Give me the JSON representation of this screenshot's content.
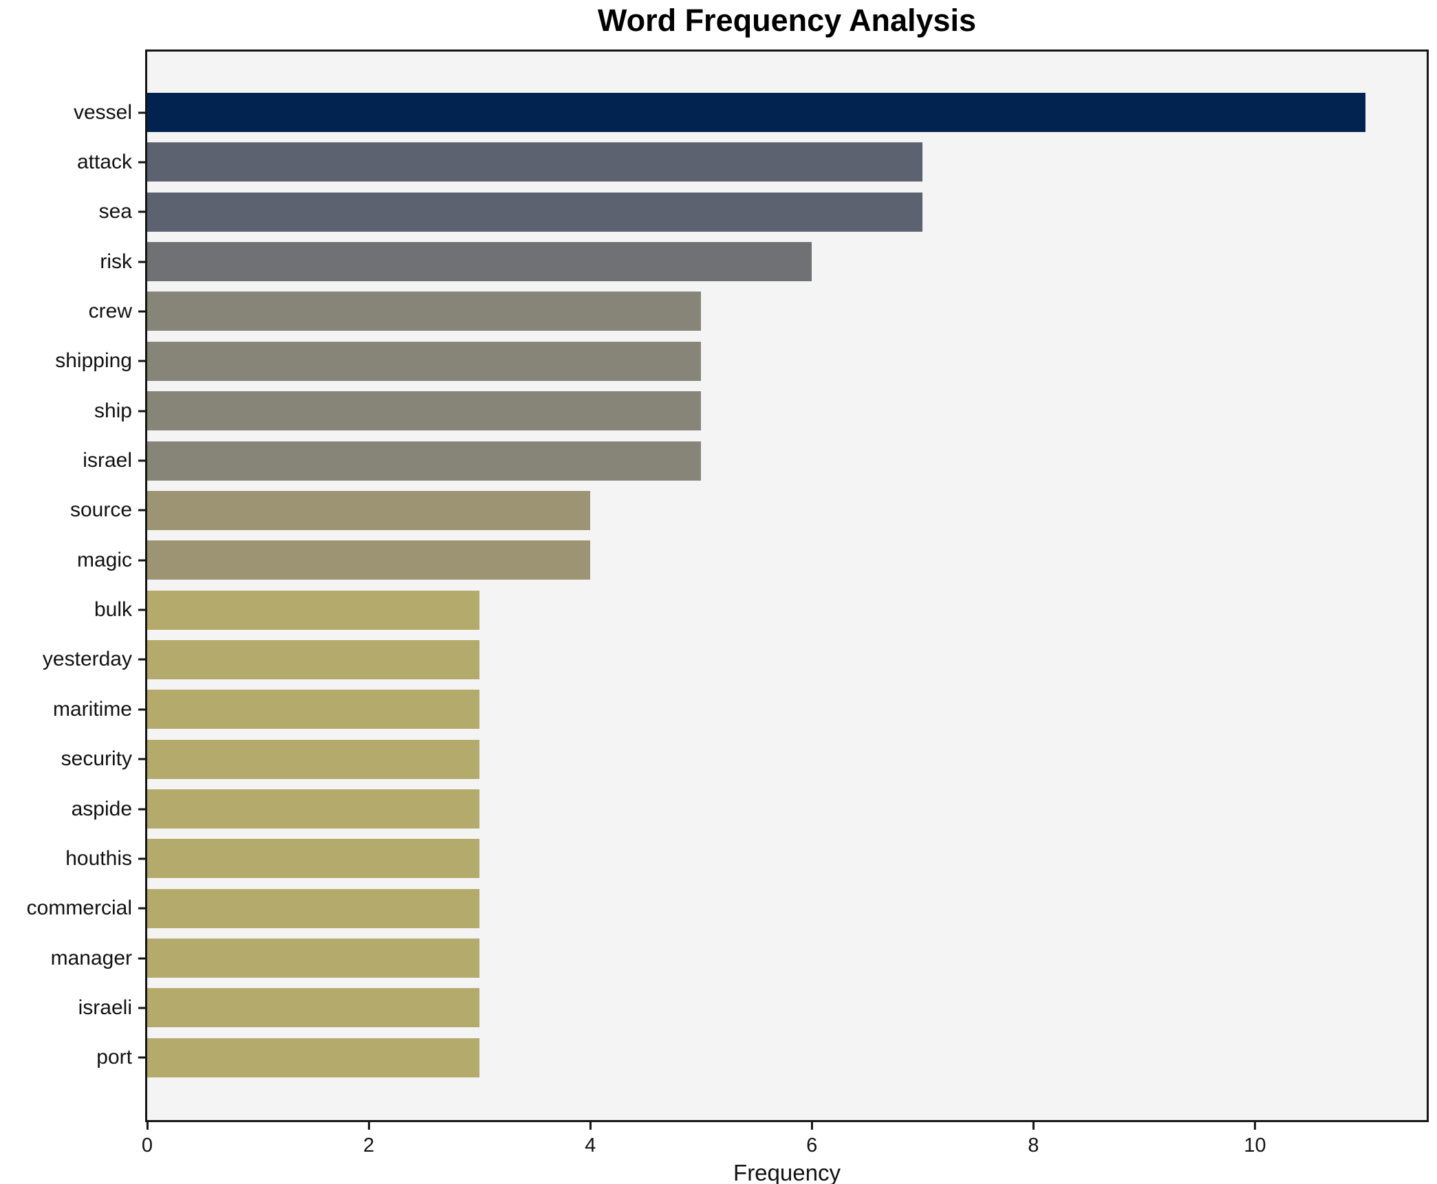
{
  "chart_data": {
    "type": "bar",
    "orientation": "horizontal",
    "title": "Word Frequency Analysis",
    "xlabel": "Frequency",
    "ylabel": "",
    "categories": [
      "vessel",
      "attack",
      "sea",
      "risk",
      "crew",
      "shipping",
      "ship",
      "israel",
      "source",
      "magic",
      "bulk",
      "yesterday",
      "maritime",
      "security",
      "aspide",
      "houthis",
      "commercial",
      "manager",
      "israeli",
      "port"
    ],
    "values": [
      11,
      7,
      7,
      6,
      5,
      5,
      5,
      5,
      4,
      4,
      3,
      3,
      3,
      3,
      3,
      3,
      3,
      3,
      3,
      3
    ],
    "bar_colors": [
      "#02234f",
      "#5d6270",
      "#5d6270",
      "#707175",
      "#868577",
      "#868577",
      "#868577",
      "#868577",
      "#9d9473",
      "#9d9473",
      "#b4aa6c",
      "#b4aa6c",
      "#b4aa6c",
      "#b4aa6c",
      "#b4aa6c",
      "#b4aa6c",
      "#b4aa6c",
      "#b4aa6c",
      "#b4aa6c",
      "#b4aa6c"
    ],
    "xlim": [
      0,
      11.55
    ],
    "x_ticks": [
      0,
      2,
      4,
      6,
      8,
      10
    ],
    "grid": false,
    "legend": null,
    "plot_background": "#f5f4f5",
    "figure_background": "#ffffff",
    "spine_color": "#141414"
  }
}
